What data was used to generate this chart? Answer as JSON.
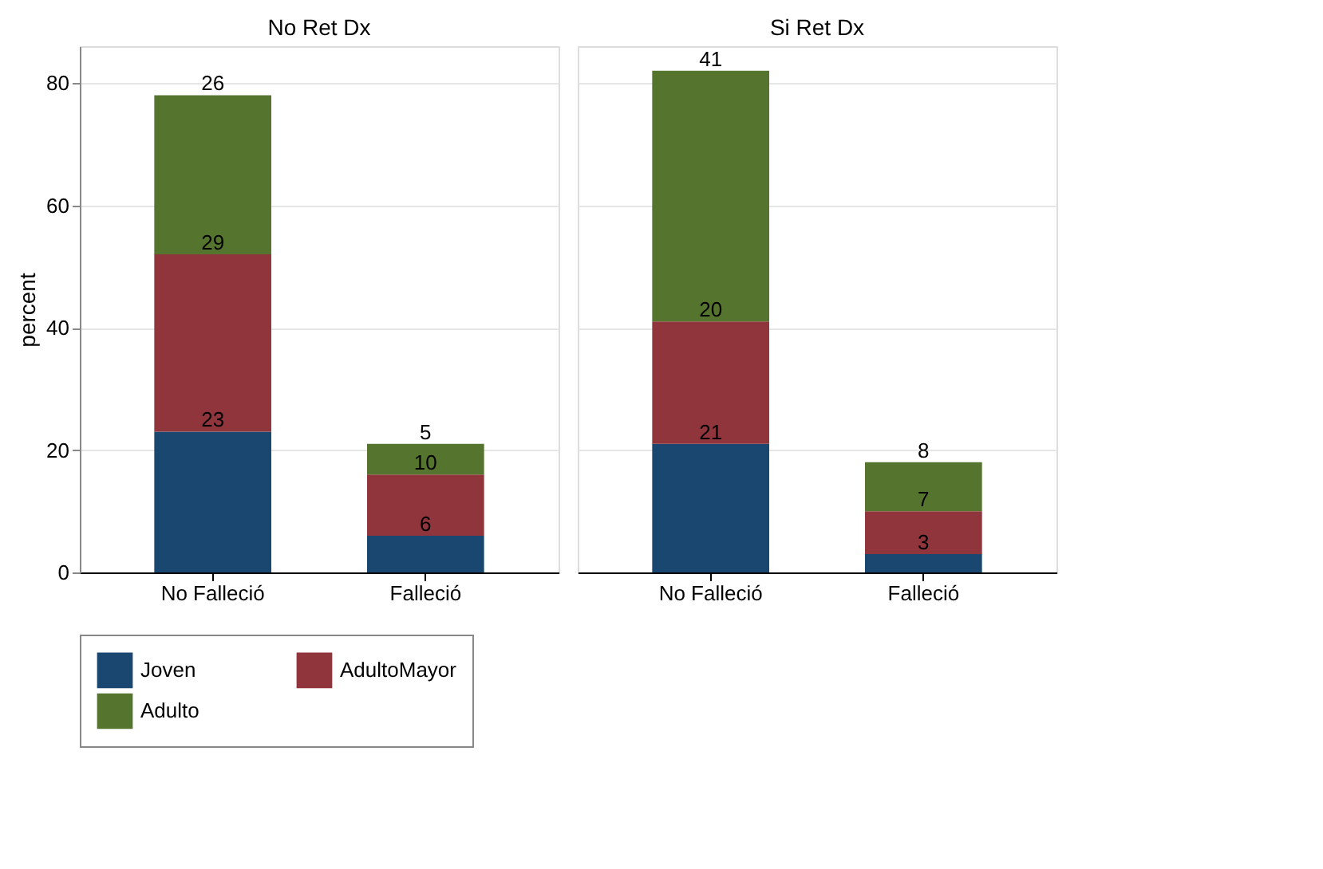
{
  "chart_data": [
    {
      "type": "bar",
      "title": "No Ret Dx",
      "ylabel": "percent",
      "categories": [
        "No Falleció",
        "Falleció"
      ],
      "stacked": true,
      "data_labels": true,
      "grid": "y",
      "legend": "bottom",
      "ylim": [
        0,
        86
      ],
      "yticks": [
        0,
        20,
        40,
        60,
        80
      ],
      "series": [
        {
          "name": "Joven",
          "color": "#1a476f",
          "values": [
            23,
            6
          ]
        },
        {
          "name": "AdultoMayor",
          "color": "#90353b",
          "values": [
            29,
            10
          ]
        },
        {
          "name": "Adulto",
          "color": "#55752f",
          "values": [
            26,
            5
          ]
        }
      ]
    },
    {
      "type": "bar",
      "title": "Si Ret Dx",
      "categories": [
        "No Falleció",
        "Falleció"
      ],
      "stacked": true,
      "data_labels": true,
      "grid": "y",
      "legend": "bottom",
      "ylim": [
        0,
        86
      ],
      "yticks": [
        0,
        20,
        40,
        60,
        80
      ],
      "tick_labels": "x",
      "series": [
        {
          "name": "Joven",
          "color": "#1a476f",
          "values": [
            21,
            3
          ]
        },
        {
          "name": "AdultoMayor",
          "color": "#90353b",
          "values": [
            20,
            7
          ]
        },
        {
          "name": "Adulto",
          "color": "#55752f",
          "values": [
            41,
            8
          ]
        }
      ]
    }
  ]
}
